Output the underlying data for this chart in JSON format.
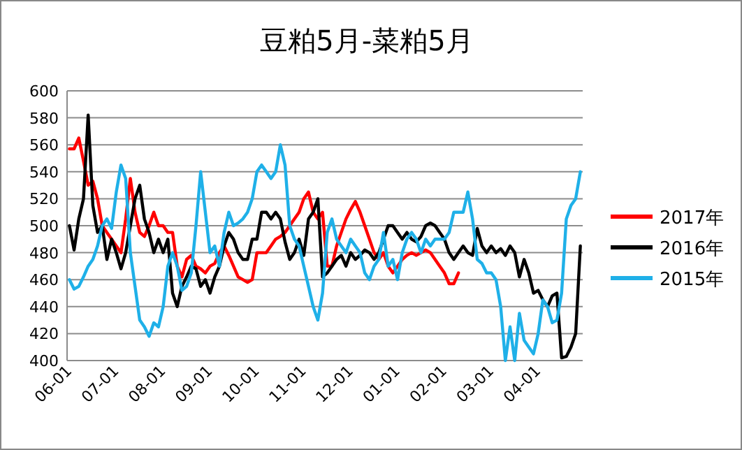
{
  "chart_data": {
    "type": "line",
    "title": "豆粕5月-菜粕5月",
    "categories": [
      "06-01",
      null,
      null,
      null,
      null,
      null,
      null,
      null,
      null,
      null,
      "07-01",
      null,
      null,
      null,
      null,
      null,
      null,
      null,
      null,
      null,
      "08-01",
      null,
      null,
      null,
      null,
      null,
      null,
      null,
      null,
      null,
      "09-01",
      null,
      null,
      null,
      null,
      null,
      null,
      null,
      null,
      null,
      "10-01",
      null,
      null,
      null,
      null,
      null,
      null,
      null,
      null,
      null,
      "11-01",
      null,
      null,
      null,
      null,
      null,
      null,
      null,
      null,
      null,
      "12-01",
      null,
      null,
      null,
      null,
      null,
      null,
      null,
      null,
      null,
      "01-01",
      null,
      null,
      null,
      null,
      null,
      null,
      null,
      null,
      null,
      "02-01",
      null,
      null,
      null,
      null,
      null,
      null,
      null,
      null,
      null,
      "03-01",
      null,
      null,
      null,
      null,
      null,
      null,
      null,
      null,
      null,
      "04-01",
      null,
      null,
      null,
      null,
      null,
      null,
      null,
      null,
      null
    ],
    "series": [
      {
        "name": "2017年",
        "color": "#ff0000",
        "values": [
          557,
          557,
          565,
          548,
          530,
          533,
          520,
          500,
          495,
          490,
          485,
          480,
          505,
          535,
          510,
          495,
          492,
          500,
          510,
          500,
          500,
          495,
          495,
          470,
          462,
          475,
          478,
          470,
          468,
          465,
          470,
          472,
          480,
          485,
          478,
          470,
          462,
          460,
          458,
          460,
          480,
          480,
          480,
          485,
          490,
          492,
          495,
          500,
          505,
          510,
          520,
          525,
          510,
          505,
          510,
          470,
          470,
          485,
          495,
          505,
          512,
          518,
          510,
          500,
          490,
          480,
          475,
          480,
          470,
          465,
          470,
          475,
          478,
          480,
          478,
          480,
          482,
          480,
          475,
          470,
          465,
          457,
          457,
          465,
          null,
          null,
          null,
          null,
          null,
          null,
          null,
          null,
          null,
          null,
          null,
          null,
          null,
          null,
          null,
          null,
          null,
          null,
          null,
          null,
          null,
          null,
          null,
          null,
          null,
          null
        ]
      },
      {
        "name": "2016年",
        "color": "#000000",
        "values": [
          500,
          482,
          505,
          520,
          582,
          515,
          495,
          500,
          475,
          490,
          480,
          468,
          480,
          500,
          520,
          530,
          505,
          495,
          480,
          490,
          480,
          490,
          450,
          440,
          455,
          462,
          470,
          468,
          455,
          460,
          450,
          462,
          470,
          485,
          495,
          490,
          480,
          475,
          475,
          490,
          490,
          510,
          510,
          505,
          510,
          505,
          488,
          475,
          480,
          490,
          478,
          505,
          510,
          520,
          462,
          465,
          470,
          475,
          478,
          470,
          480,
          475,
          478,
          482,
          480,
          475,
          480,
          490,
          500,
          500,
          495,
          490,
          495,
          490,
          488,
          492,
          500,
          502,
          500,
          495,
          490,
          480,
          475,
          480,
          485,
          480,
          478,
          498,
          485,
          480,
          485,
          480,
          483,
          478,
          485,
          480,
          462,
          475,
          465,
          450,
          452,
          445,
          440,
          448,
          450,
          402,
          403,
          410,
          420,
          485
        ]
      },
      {
        "name": "2015年",
        "color": "#1fb0e8",
        "values": [
          460,
          453,
          455,
          462,
          470,
          475,
          485,
          500,
          505,
          498,
          525,
          545,
          535,
          480,
          455,
          430,
          425,
          418,
          428,
          425,
          440,
          470,
          480,
          470,
          452,
          455,
          465,
          500,
          540,
          510,
          480,
          485,
          470,
          495,
          510,
          500,
          502,
          505,
          510,
          520,
          540,
          545,
          540,
          535,
          540,
          560,
          545,
          500,
          490,
          485,
          470,
          455,
          440,
          430,
          450,
          495,
          505,
          490,
          485,
          480,
          490,
          485,
          480,
          465,
          460,
          470,
          475,
          495,
          470,
          475,
          460,
          480,
          490,
          495,
          490,
          480,
          490,
          485,
          490,
          490,
          490,
          495,
          510,
          510,
          510,
          525,
          505,
          475,
          472,
          465,
          465,
          460,
          440,
          400,
          425,
          400,
          435,
          415,
          410,
          405,
          420,
          445,
          440,
          428,
          430,
          450,
          505,
          515,
          520,
          540
        ]
      }
    ],
    "ylim": [
      400,
      600
    ],
    "yticks": [
      400,
      420,
      440,
      460,
      480,
      500,
      520,
      540,
      560,
      580,
      600
    ],
    "grid": "y",
    "legend": "right",
    "line_style": "solid",
    "marker": "none"
  }
}
